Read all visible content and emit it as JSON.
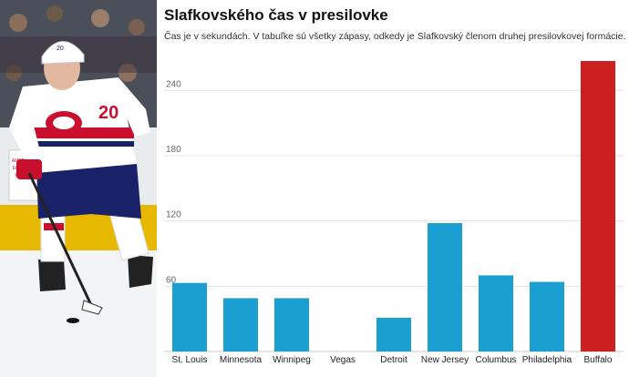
{
  "title": "Slafkovského čas v presilovke",
  "subtitle": "Čas je v sekundách. V tabuľke sú všetky zápasy, odkedy je Slafkovský členom druhej presilovkovej formácie.",
  "photo": {
    "jersey_number": "20",
    "board_text": "AMERICAN ELECTRIC POWER",
    "colors": {
      "red": "#c8102e",
      "navy": "#192168",
      "white": "#ffffff"
    }
  },
  "chart_data": {
    "type": "bar",
    "title": "Slafkovského čas v presilovke",
    "categories": [
      "St. Louis",
      "Minnesota",
      "Winnipeg",
      "Vegas",
      "Detroit",
      "New Jersey",
      "Columbus",
      "Philadelphia",
      "Buffalo"
    ],
    "values": [
      63,
      49,
      49,
      0,
      31,
      118,
      70,
      64,
      267
    ],
    "ylim": [
      0,
      267
    ],
    "yticks": [
      60,
      120,
      180,
      240
    ],
    "grid": true,
    "colors": {
      "default": "#1b9fd1",
      "highlight": "#cc1f1f"
    },
    "highlight_index": 8
  }
}
